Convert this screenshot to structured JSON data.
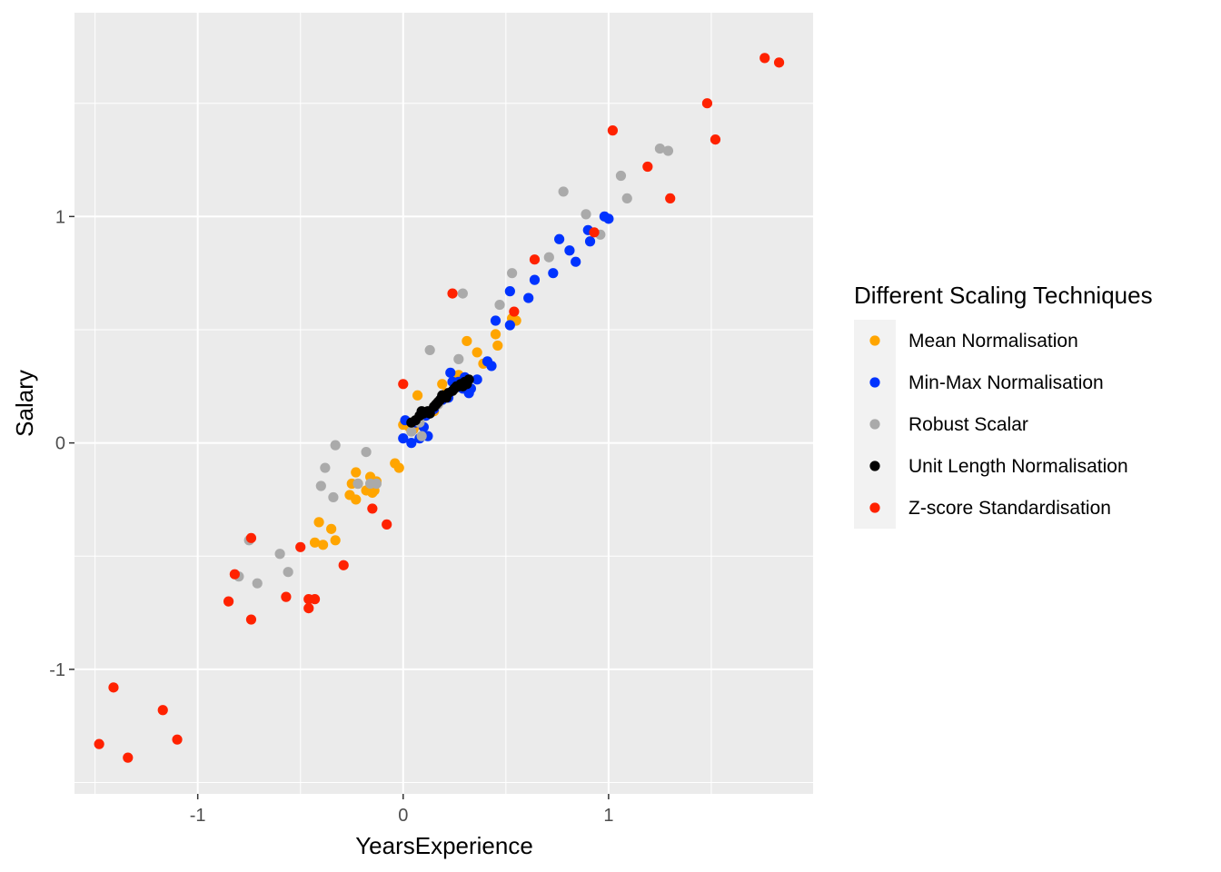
{
  "chart_data": {
    "type": "scatter",
    "title": "",
    "xlabel": "YearsExperience",
    "ylabel": "Salary",
    "xlim": [
      -1.6,
      2.0
    ],
    "ylim": [
      -1.55,
      1.9
    ],
    "x_ticks": [
      -1,
      0,
      1
    ],
    "y_ticks": [
      -1,
      0,
      1
    ],
    "x_tick_labels": [
      "-1",
      "0",
      "1"
    ],
    "y_tick_labels": [
      "-1",
      "0",
      "1"
    ],
    "grid": true,
    "legend": {
      "title": "Different Scaling Techniques",
      "placement": "right"
    },
    "series": [
      {
        "name": "Mean Normalisation",
        "color": "#FFA500",
        "points": [
          [
            -0.43,
            -0.44
          ],
          [
            -0.41,
            -0.35
          ],
          [
            -0.39,
            -0.45
          ],
          [
            -0.35,
            -0.38
          ],
          [
            -0.33,
            -0.43
          ],
          [
            -0.26,
            -0.23
          ],
          [
            -0.25,
            -0.18
          ],
          [
            -0.23,
            -0.25
          ],
          [
            -0.23,
            -0.13
          ],
          [
            -0.22,
            -0.18
          ],
          [
            -0.18,
            -0.21
          ],
          [
            -0.16,
            -0.15
          ],
          [
            -0.15,
            -0.22
          ],
          [
            -0.14,
            -0.21
          ],
          [
            -0.13,
            -0.17
          ],
          [
            -0.04,
            -0.09
          ],
          [
            -0.02,
            -0.11
          ],
          [
            0.0,
            0.08
          ],
          [
            0.03,
            0.07
          ],
          [
            0.05,
            0.06
          ],
          [
            0.07,
            0.21
          ],
          [
            0.07,
            0.08
          ],
          [
            0.11,
            0.12
          ],
          [
            0.15,
            0.14
          ],
          [
            0.19,
            0.26
          ],
          [
            0.21,
            0.22
          ],
          [
            0.27,
            0.3
          ],
          [
            0.31,
            0.45
          ],
          [
            0.36,
            0.4
          ],
          [
            0.39,
            0.35
          ],
          [
            0.45,
            0.48
          ],
          [
            0.46,
            0.43
          ],
          [
            0.53,
            0.55
          ],
          [
            0.55,
            0.54
          ]
        ]
      },
      {
        "name": "Min-Max Normalisation",
        "color": "#0033FF",
        "points": [
          [
            0.0,
            0.02
          ],
          [
            0.01,
            0.1
          ],
          [
            0.04,
            0.0
          ],
          [
            0.06,
            0.09
          ],
          [
            0.08,
            0.02
          ],
          [
            0.1,
            0.07
          ],
          [
            0.11,
            0.12
          ],
          [
            0.12,
            0.03
          ],
          [
            0.15,
            0.15
          ],
          [
            0.19,
            0.19
          ],
          [
            0.22,
            0.2
          ],
          [
            0.23,
            0.31
          ],
          [
            0.24,
            0.27
          ],
          [
            0.27,
            0.27
          ],
          [
            0.29,
            0.24
          ],
          [
            0.3,
            0.29
          ],
          [
            0.32,
            0.22
          ],
          [
            0.33,
            0.24
          ],
          [
            0.36,
            0.28
          ],
          [
            0.41,
            0.36
          ],
          [
            0.43,
            0.34
          ],
          [
            0.45,
            0.54
          ],
          [
            0.52,
            0.52
          ],
          [
            0.52,
            0.67
          ],
          [
            0.61,
            0.64
          ],
          [
            0.64,
            0.72
          ],
          [
            0.73,
            0.75
          ],
          [
            0.76,
            0.9
          ],
          [
            0.81,
            0.85
          ],
          [
            0.84,
            0.8
          ],
          [
            0.9,
            0.94
          ],
          [
            0.91,
            0.89
          ],
          [
            0.98,
            1.0
          ],
          [
            1.0,
            0.99
          ]
        ]
      },
      {
        "name": "Robust Scalar",
        "color": "#AAAAAA",
        "points": [
          [
            -0.8,
            -0.59
          ],
          [
            -0.75,
            -0.43
          ],
          [
            -0.71,
            -0.62
          ],
          [
            -0.6,
            -0.49
          ],
          [
            -0.56,
            -0.57
          ],
          [
            -0.4,
            -0.19
          ],
          [
            -0.38,
            -0.11
          ],
          [
            -0.34,
            -0.24
          ],
          [
            -0.33,
            -0.01
          ],
          [
            -0.22,
            -0.18
          ],
          [
            -0.18,
            -0.04
          ],
          [
            -0.16,
            -0.18
          ],
          [
            -0.13,
            -0.18
          ],
          [
            0.04,
            0.05
          ],
          [
            0.08,
            0.09
          ],
          [
            0.09,
            0.03
          ],
          [
            0.13,
            0.41
          ],
          [
            0.17,
            0.17
          ],
          [
            0.27,
            0.37
          ],
          [
            0.29,
            0.66
          ],
          [
            0.47,
            0.61
          ],
          [
            0.53,
            0.75
          ],
          [
            0.71,
            0.82
          ],
          [
            0.78,
            1.11
          ],
          [
            0.89,
            1.01
          ],
          [
            0.96,
            0.92
          ],
          [
            1.06,
            1.18
          ],
          [
            1.09,
            1.08
          ],
          [
            1.25,
            1.3
          ],
          [
            1.29,
            1.29
          ]
        ]
      },
      {
        "name": "Unit Length Normalisation",
        "color": "#000000",
        "points": [
          [
            0.04,
            0.09
          ],
          [
            0.06,
            0.1
          ],
          [
            0.08,
            0.12
          ],
          [
            0.09,
            0.14
          ],
          [
            0.1,
            0.13
          ],
          [
            0.12,
            0.14
          ],
          [
            0.13,
            0.13
          ],
          [
            0.15,
            0.16
          ],
          [
            0.16,
            0.17
          ],
          [
            0.17,
            0.18
          ],
          [
            0.18,
            0.19
          ],
          [
            0.19,
            0.21
          ],
          [
            0.21,
            0.2
          ],
          [
            0.22,
            0.22
          ],
          [
            0.24,
            0.23
          ],
          [
            0.25,
            0.24
          ],
          [
            0.26,
            0.25
          ],
          [
            0.27,
            0.25
          ],
          [
            0.28,
            0.26
          ],
          [
            0.29,
            0.25
          ],
          [
            0.3,
            0.27
          ],
          [
            0.31,
            0.26
          ],
          [
            0.32,
            0.28
          ]
        ]
      },
      {
        "name": "Z-score Standardisation",
        "color": "#FF2200",
        "points": [
          [
            -1.48,
            -1.33
          ],
          [
            -1.41,
            -1.08
          ],
          [
            -1.34,
            -1.39
          ],
          [
            -1.17,
            -1.18
          ],
          [
            -1.1,
            -1.31
          ],
          [
            -0.85,
            -0.7
          ],
          [
            -0.82,
            -0.58
          ],
          [
            -0.74,
            -0.42
          ],
          [
            -0.74,
            -0.78
          ],
          [
            -0.57,
            -0.68
          ],
          [
            -0.5,
            -0.46
          ],
          [
            -0.46,
            -0.69
          ],
          [
            -0.46,
            -0.73
          ],
          [
            -0.43,
            -0.69
          ],
          [
            -0.29,
            -0.54
          ],
          [
            -0.15,
            -0.29
          ],
          [
            -0.08,
            -0.36
          ],
          [
            0.0,
            0.26
          ],
          [
            0.24,
            0.66
          ],
          [
            0.54,
            0.58
          ],
          [
            0.64,
            0.81
          ],
          [
            0.93,
            0.93
          ],
          [
            1.02,
            1.38
          ],
          [
            1.19,
            1.22
          ],
          [
            1.3,
            1.08
          ],
          [
            1.48,
            1.5
          ],
          [
            1.52,
            1.34
          ],
          [
            1.76,
            1.7
          ],
          [
            1.83,
            1.68
          ]
        ]
      }
    ]
  }
}
